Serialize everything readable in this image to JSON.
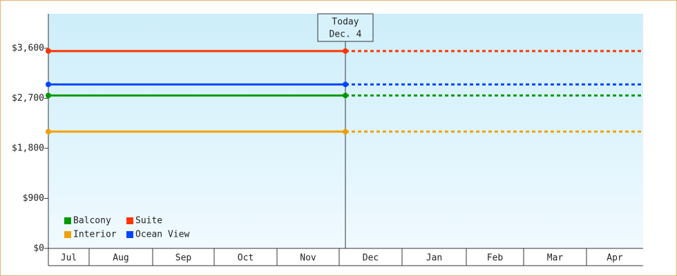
{
  "chart_data": {
    "type": "line",
    "categories": [
      "Jul",
      "Aug",
      "Sep",
      "Oct",
      "Nov",
      "Dec",
      "Jan",
      "Feb",
      "Mar",
      "Apr"
    ],
    "ylim": [
      0,
      4220
    ],
    "yticks": [
      {
        "value": 0,
        "label": "$0"
      },
      {
        "value": 900,
        "label": "$900"
      },
      {
        "value": 1800,
        "label": "$1,800"
      },
      {
        "value": 2700,
        "label": "$2,700"
      },
      {
        "value": 3600,
        "label": "$3,600"
      }
    ],
    "annotation": {
      "title": "Today",
      "date": "Dec. 4"
    },
    "series": [
      {
        "name": "Balcony",
        "color": "#009900",
        "value": 2750
      },
      {
        "name": "Suite",
        "color": "#ff3300",
        "value": 3550
      },
      {
        "name": "Interior",
        "color": "#f0a000",
        "value": 2100
      },
      {
        "name": "Ocean View",
        "color": "#0044ff",
        "value": 2950
      }
    ]
  }
}
